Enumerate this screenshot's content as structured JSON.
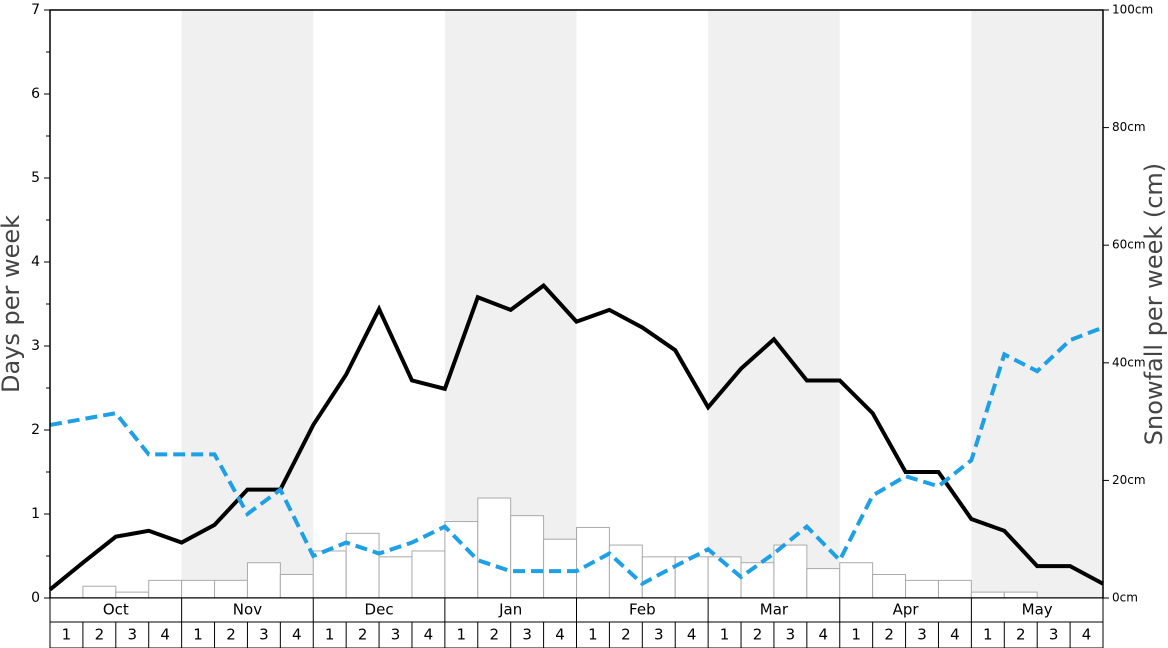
{
  "chart_data": {
    "type": "line",
    "y_label": "Days per week",
    "y2_label": "Snowfall per week (cm)",
    "months": [
      "Oct",
      "Nov",
      "Dec",
      "Jan",
      "Feb",
      "Mar",
      "Apr",
      "May"
    ],
    "categories": [
      "1",
      "2",
      "3",
      "4",
      "1",
      "2",
      "3",
      "4",
      "1",
      "2",
      "3",
      "4",
      "1",
      "2",
      "3",
      "4",
      "1",
      "2",
      "3",
      "4",
      "1",
      "2",
      "3",
      "4",
      "1",
      "2",
      "3",
      "4",
      "1",
      "2",
      "3",
      "4"
    ],
    "x": [
      0,
      1,
      2,
      3,
      4,
      5,
      6,
      7,
      8,
      9,
      10,
      11,
      12,
      13,
      14,
      15,
      16,
      17,
      18,
      19,
      20,
      21,
      22,
      23,
      24,
      25,
      26,
      27,
      28,
      29,
      30,
      31,
      32
    ],
    "xlim": [
      0,
      32
    ],
    "ylim": [
      0,
      7
    ],
    "yticks": [
      0,
      1,
      2,
      3,
      4,
      5,
      6,
      7
    ],
    "y2lim": [
      0,
      100
    ],
    "y2ticks": [
      {
        "value": 0,
        "label": "0cm"
      },
      {
        "value": 20,
        "label": "20cm"
      },
      {
        "value": 40,
        "label": "40cm"
      },
      {
        "value": 60,
        "label": "60cm"
      },
      {
        "value": 80,
        "label": "80cm"
      },
      {
        "value": 100,
        "label": "100cm"
      }
    ],
    "series": [
      {
        "type": "bar",
        "axis": "y2",
        "color": "#ffffff",
        "values": [
          0,
          2,
          1,
          3,
          3,
          3,
          6,
          4,
          8,
          11,
          7,
          8,
          13,
          17,
          14,
          10,
          12,
          9,
          7,
          7,
          7,
          6,
          9,
          5,
          6,
          4,
          3,
          3,
          1,
          1,
          0,
          0
        ]
      },
      {
        "type": "line",
        "color": "#000000",
        "values": [
          0.1,
          0.42,
          0.73,
          0.8,
          0.66,
          0.87,
          1.29,
          1.29,
          2.06,
          2.66,
          3.44,
          2.59,
          2.49,
          3.58,
          3.43,
          3.72,
          3.29,
          3.43,
          3.22,
          2.95,
          2.27,
          2.73,
          3.08,
          2.59,
          2.59,
          2.2,
          1.5,
          1.5,
          0.94,
          0.8,
          0.38,
          0.38,
          0.17
        ]
      },
      {
        "type": "line",
        "dashed": true,
        "color": "#1ea0e6",
        "values": [
          2.06,
          2.13,
          2.2,
          1.71,
          1.71,
          1.71,
          1.0,
          1.29,
          0.5,
          0.66,
          0.53,
          0.66,
          0.85,
          0.45,
          0.32,
          0.32,
          0.32,
          0.53,
          0.17,
          0.38,
          0.58,
          0.25,
          0.53,
          0.85,
          0.45,
          1.22,
          1.45,
          1.33,
          1.64,
          2.9,
          2.7,
          3.07,
          3.22
        ]
      }
    ]
  }
}
